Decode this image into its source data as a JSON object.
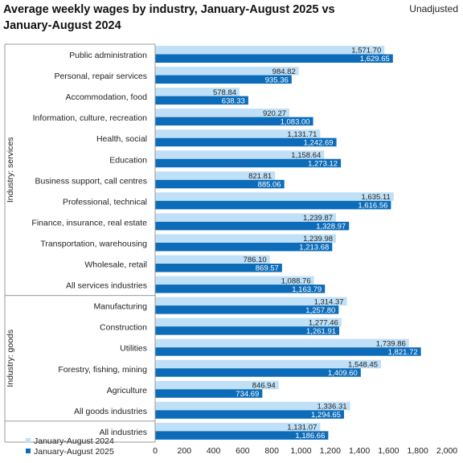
{
  "chart_data": {
    "type": "bar",
    "orientation": "horizontal",
    "title": "Average weekly wages by industry, January-August 2025 vs January-August 2024",
    "note": "Unadjusted",
    "groups": [
      {
        "label": "Industry: services",
        "categories": [
          "Public administration",
          "Personal, repair services",
          "Accommodation, food",
          "Information, culture, recreation",
          "Health, social",
          "Education",
          "Business support, call centres",
          "Professional, technical",
          "Finance, insurance, real estate",
          "Transportation, warehousing",
          "Wholesale, retail",
          "All services industries"
        ]
      },
      {
        "label": "Industry: goods",
        "categories": [
          "Manufacturing",
          "Construction",
          "Utilities",
          "Forestry, fishing, mining",
          "Agriculture",
          "All goods industries"
        ]
      },
      {
        "label": "",
        "categories": [
          "All industries"
        ]
      }
    ],
    "series": [
      {
        "name": "January-August 2024",
        "color": "#bfe0f7",
        "values": [
          1571.7,
          984.82,
          578.84,
          920.27,
          1131.71,
          1158.64,
          821.81,
          1635.11,
          1239.87,
          1239.98,
          786.1,
          1088.76,
          1314.37,
          1277.46,
          1739.86,
          1548.45,
          846.94,
          1336.31,
          1131.07
        ],
        "labels": [
          "1,571.70",
          "984.82",
          "578.84",
          "920.27",
          "1,131.71",
          "1,158.64",
          "821.81",
          "1,635.11",
          "1,239.87",
          "1,239.98",
          "786.10",
          "1,088.76",
          "1,314.37",
          "1,277.46",
          "1,739.86",
          "1,548.45",
          "846.94",
          "1,336.31",
          "1,131.07"
        ]
      },
      {
        "name": "January-August 2025",
        "color": "#0c6cb9",
        "values": [
          1629.65,
          935.36,
          638.33,
          1083.0,
          1242.69,
          1273.12,
          885.06,
          1616.56,
          1328.97,
          1213.68,
          869.57,
          1163.79,
          1257.8,
          1261.91,
          1821.72,
          1409.6,
          734.69,
          1294.65,
          1186.66
        ],
        "labels": [
          "1,629.65",
          "935.36",
          "638.33",
          "1,083.00",
          "1,242.69",
          "1,273.12",
          "885.06",
          "1,616.56",
          "1,328.97",
          "1,213.68",
          "869.57",
          "1,163.79",
          "1,257.80",
          "1,261.91",
          "1,821.72",
          "1,409.60",
          "734.69",
          "1,294.65",
          "1,186.66"
        ]
      }
    ],
    "xlim": [
      0,
      2000
    ],
    "xticks": [
      "0",
      "200",
      "400",
      "600",
      "800",
      "1,000",
      "1,200",
      "1,400",
      "1,600",
      "1,800",
      "2,000"
    ],
    "legend_position": "bottom-left",
    "grid": false
  }
}
